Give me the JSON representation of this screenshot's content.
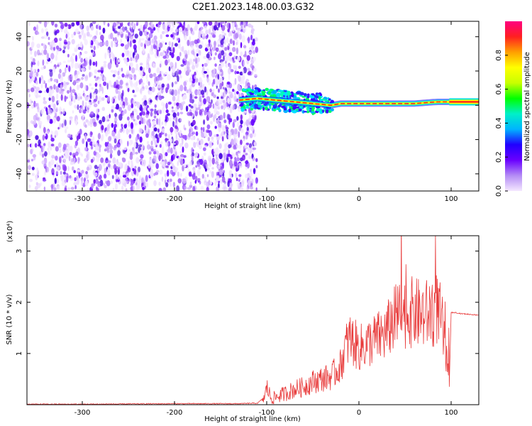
{
  "title": "C2E1.2023.148.00.03.G32",
  "colors": {
    "snr_line": "#e83a3a",
    "frame": "#000000"
  },
  "chart_data": [
    {
      "type": "heatmap",
      "xlabel": "Height of straight line (km)",
      "ylabel": "Frequency (Hz)",
      "xlim": [
        -360,
        130
      ],
      "ylim": [
        -50,
        49
      ],
      "xticks": [
        {
          "value": -300,
          "label": "-300"
        },
        {
          "value": -200,
          "label": "-200"
        },
        {
          "value": -100,
          "label": "-100"
        },
        {
          "value": 0,
          "label": "0"
        },
        {
          "value": 100,
          "label": "100"
        }
      ],
      "yticks": [
        {
          "value": 40,
          "label": "40"
        },
        {
          "value": 20,
          "label": "20"
        },
        {
          "value": 0,
          "label": "0"
        },
        {
          "value": -20,
          "label": "-20"
        },
        {
          "value": -40,
          "label": "-40"
        }
      ],
      "noise_region": {
        "x_from": -360,
        "x_to": -120
      },
      "signal_line": [
        {
          "x": -130,
          "y": 3
        },
        {
          "x": -110,
          "y": 4
        },
        {
          "x": -90,
          "y": 3
        },
        {
          "x": -70,
          "y": 2
        },
        {
          "x": -50,
          "y": 1
        },
        {
          "x": -30,
          "y": 0
        },
        {
          "x": -20,
          "y": 1
        },
        {
          "x": 0,
          "y": 1
        },
        {
          "x": 30,
          "y": 1
        },
        {
          "x": 60,
          "y": 1
        },
        {
          "x": 85,
          "y": 2
        },
        {
          "x": 95,
          "y": 2
        },
        {
          "x": 130,
          "y": 2
        }
      ],
      "colorbar": {
        "label": "Normalized spectral amplitude",
        "range": [
          0,
          1
        ],
        "ticks": [
          {
            "value": 0.0,
            "label": "0.0"
          },
          {
            "value": 0.2,
            "label": "0.2"
          },
          {
            "value": 0.4,
            "label": "0.4"
          },
          {
            "value": 0.6,
            "label": "0.6"
          },
          {
            "value": 0.8,
            "label": "0.8"
          }
        ],
        "colors": [
          "#f5e8ff",
          "#b48cf5",
          "#6a00ff",
          "#2000ff",
          "#00b4ff",
          "#00f0c8",
          "#00ff00",
          "#c8ff00",
          "#ffff00",
          "#ffa000",
          "#ff2020",
          "#ff0080"
        ]
      }
    },
    {
      "type": "line",
      "xlabel": "Height of straight line (km)",
      "ylabel": "SNR (10 * v/v)",
      "multiplier": "(x10⁴)",
      "xlim": [
        -360,
        130
      ],
      "ylim": [
        0,
        3.3
      ],
      "xticks": [
        {
          "value": -300,
          "label": "-300"
        },
        {
          "value": -200,
          "label": "-200"
        },
        {
          "value": -100,
          "label": "-100"
        },
        {
          "value": 0,
          "label": "0"
        },
        {
          "value": 100,
          "label": "100"
        }
      ],
      "yticks": [
        {
          "value": 1,
          "label": "1"
        },
        {
          "value": 2,
          "label": "2"
        },
        {
          "value": 3,
          "label": "3"
        }
      ],
      "series": [
        {
          "x": [
            -360,
            -300,
            -200,
            -130,
            -110,
            -102,
            -100,
            -95,
            -90,
            -80,
            -70,
            -60,
            -50,
            -40,
            -30,
            -20,
            -15,
            -10,
            -5,
            0,
            10,
            20,
            30,
            35,
            40,
            45,
            50,
            60,
            70,
            80,
            85,
            90,
            95,
            98,
            100,
            105,
            110,
            130
          ],
          "y": [
            0.01,
            0.01,
            0.02,
            0.02,
            0.03,
            0.15,
            0.35,
            0.12,
            0.15,
            0.22,
            0.3,
            0.35,
            0.45,
            0.5,
            0.55,
            0.75,
            1.1,
            1.3,
            1.2,
            1.1,
            1.2,
            1.3,
            1.4,
            1.6,
            1.7,
            1.75,
            1.8,
            1.8,
            1.75,
            1.8,
            1.9,
            1.6,
            0.8,
            0.35,
            1.8,
            1.8,
            1.78,
            1.75
          ]
        }
      ]
    }
  ]
}
